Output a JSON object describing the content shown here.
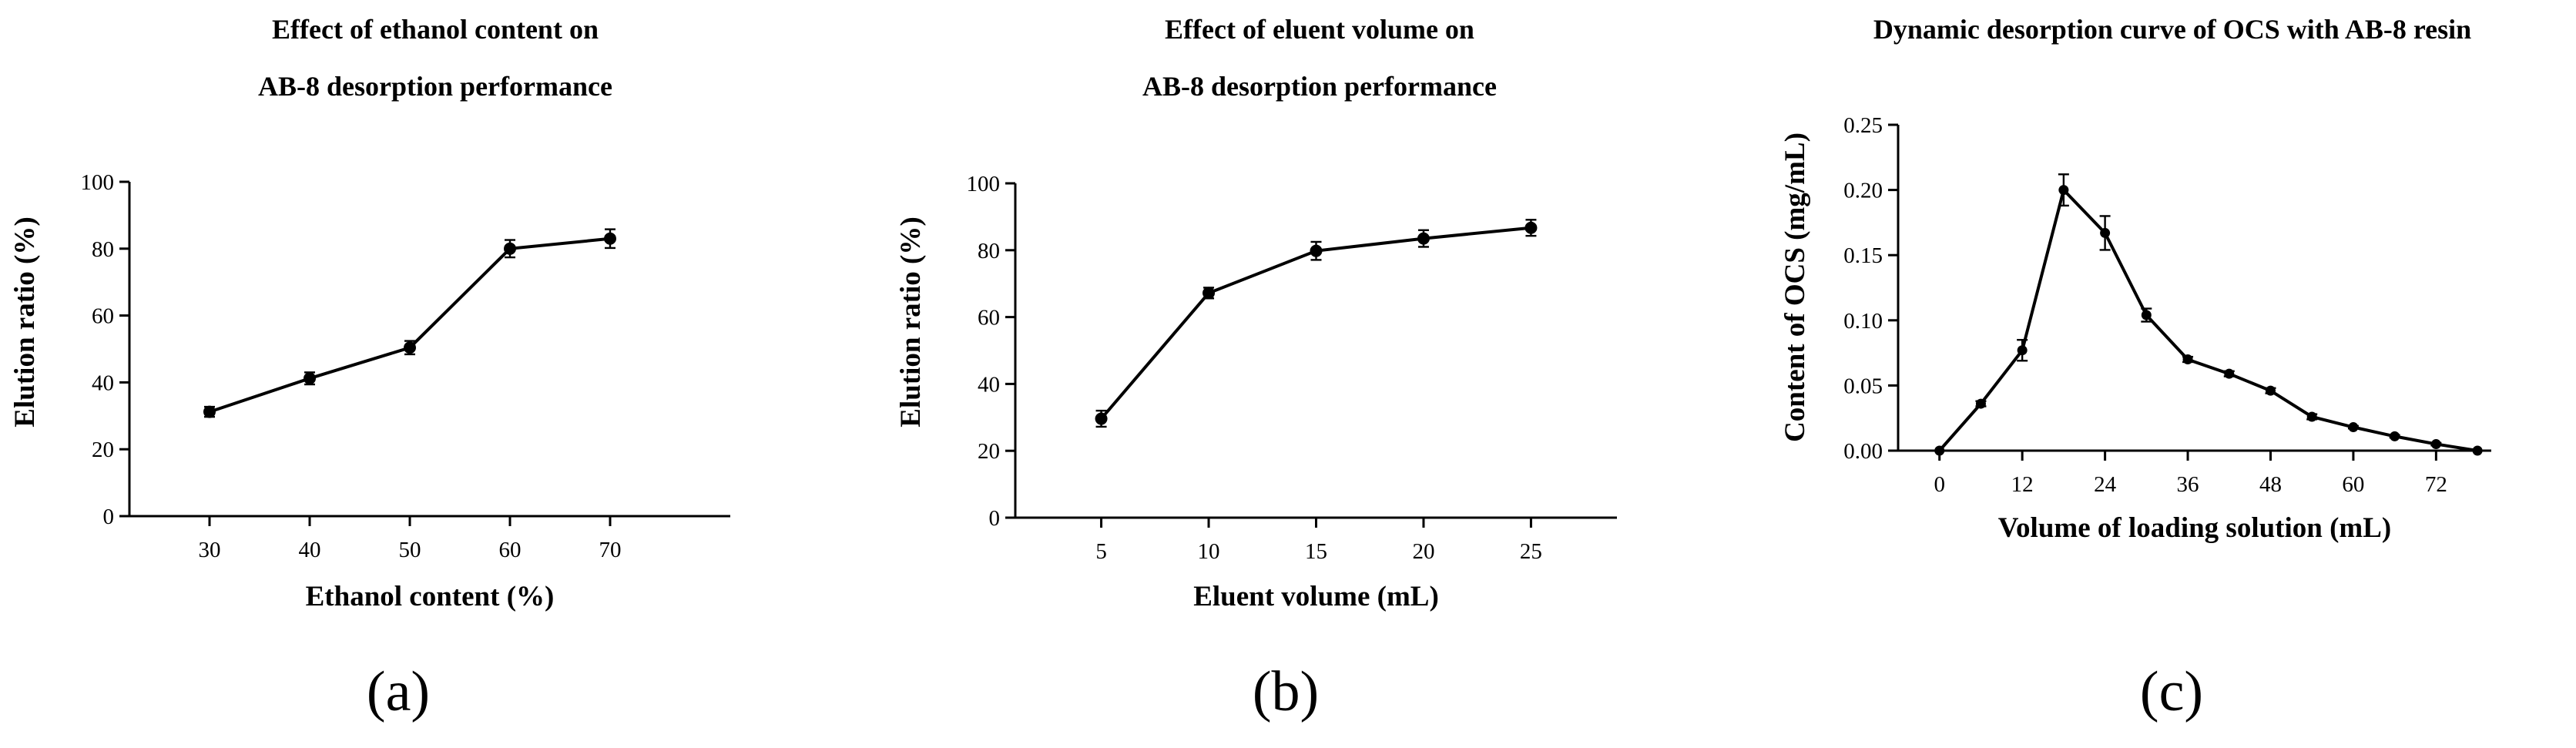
{
  "chart_data": [
    {
      "type": "line",
      "panel": "(a)",
      "title": [
        "Effect of ethanol content on",
        "AB-8 desorption performance"
      ],
      "xlabel": "Ethanol content (%)",
      "ylabel": "Elution ratio (%)",
      "xlim": [
        22,
        82
      ],
      "ylim": [
        0,
        100
      ],
      "xticks": [
        30,
        40,
        50,
        60,
        70
      ],
      "yticks": [
        0,
        20,
        40,
        60,
        80,
        100
      ],
      "x": [
        30,
        40,
        50,
        60,
        70
      ],
      "values": [
        31.2,
        41.2,
        50.4,
        80.0,
        83.0
      ],
      "errors": [
        1.5,
        1.8,
        2.0,
        2.6,
        2.8
      ]
    },
    {
      "type": "line",
      "panel": "(b)",
      "title": [
        "Effect of eluent volume on",
        "AB-8 desorption performance"
      ],
      "xlabel": "Eluent volume (mL)",
      "ylabel": "Elution ratio (%)",
      "xlim": [
        1,
        29
      ],
      "ylim": [
        0,
        100
      ],
      "xticks": [
        5,
        10,
        15,
        20,
        25
      ],
      "yticks": [
        0,
        20,
        40,
        60,
        80,
        100
      ],
      "x": [
        5,
        10,
        15,
        20,
        25
      ],
      "values": [
        29.6,
        67.2,
        79.8,
        83.5,
        86.7
      ],
      "errors": [
        2.4,
        1.6,
        2.7,
        2.5,
        2.4
      ]
    },
    {
      "type": "line",
      "panel": "(c)",
      "title": [
        "Dynamic desorption curve of OCS with AB-8 resin"
      ],
      "xlabel": "Volume of loading solution (mL)",
      "ylabel": "Content of OCS (mg/mL)",
      "xlim": [
        -6,
        80
      ],
      "ylim": [
        0,
        0.25
      ],
      "xticks": [
        0,
        12,
        24,
        36,
        48,
        60,
        72
      ],
      "yticks": [
        "0.00",
        "0.05",
        "0.10",
        "0.15",
        "0.20",
        "0.25"
      ],
      "x": [
        0,
        6,
        12,
        18,
        24,
        30,
        36,
        42,
        48,
        54,
        60,
        66,
        72,
        78
      ],
      "values": [
        0.0,
        0.036,
        0.077,
        0.2,
        0.167,
        0.104,
        0.07,
        0.059,
        0.046,
        0.026,
        0.018,
        0.011,
        0.005,
        0.0
      ],
      "errors": [
        0,
        0.002,
        0.008,
        0.012,
        0.013,
        0.005,
        0.002,
        0.002,
        0.002,
        0.002,
        0.001,
        0.001,
        0.001,
        0
      ]
    }
  ]
}
